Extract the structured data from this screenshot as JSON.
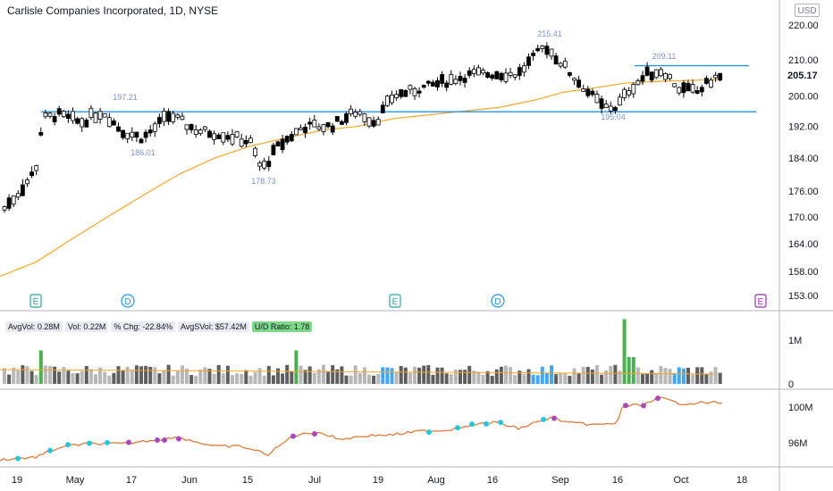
{
  "header": {
    "title": "Carlisle Companies Incorporated, 1D, NYSE",
    "currency": "USD"
  },
  "chart_data": {
    "type": "candlestick",
    "price_axis": {
      "ticks": [
        220.0,
        210.0,
        205.17,
        200.0,
        192.0,
        184.0,
        176.0,
        170.0,
        164.0,
        158.0,
        153.0
      ],
      "last_price": "205.17"
    },
    "time_axis": {
      "labels": [
        "19",
        "May",
        "17",
        "Jun",
        "15",
        "Jul",
        "19",
        "Aug",
        "16",
        "Sep",
        "16",
        "Oct",
        "18"
      ]
    },
    "annotations": [
      "197.21",
      "186.01",
      "178.73",
      "215.41",
      "209.11",
      "195.04"
    ],
    "horizontal_lines": [
      {
        "value": 195.8
      },
      {
        "value": 208.3
      }
    ],
    "events": [
      "E",
      "D",
      "E",
      "D",
      "E"
    ],
    "volume_legend": {
      "avg_vol": "AvgVol: 0.28M",
      "vol": "Vol: 0.22M",
      "pct_chg": "% Chg: -22.84%",
      "avg_dollar_vol": "AvgSVol: $57.42M",
      "ud_ratio": "U/D Ratio: 1.78"
    },
    "volume_axis": {
      "ticks": [
        "1M",
        "0"
      ]
    },
    "rs_axis": {
      "ticks": [
        "100M",
        "96M"
      ]
    },
    "colors": {
      "up": "#ffffff",
      "down": "#000000",
      "ma": "#f5a623",
      "line": "#2196f3",
      "rs": "#e07b39"
    }
  }
}
